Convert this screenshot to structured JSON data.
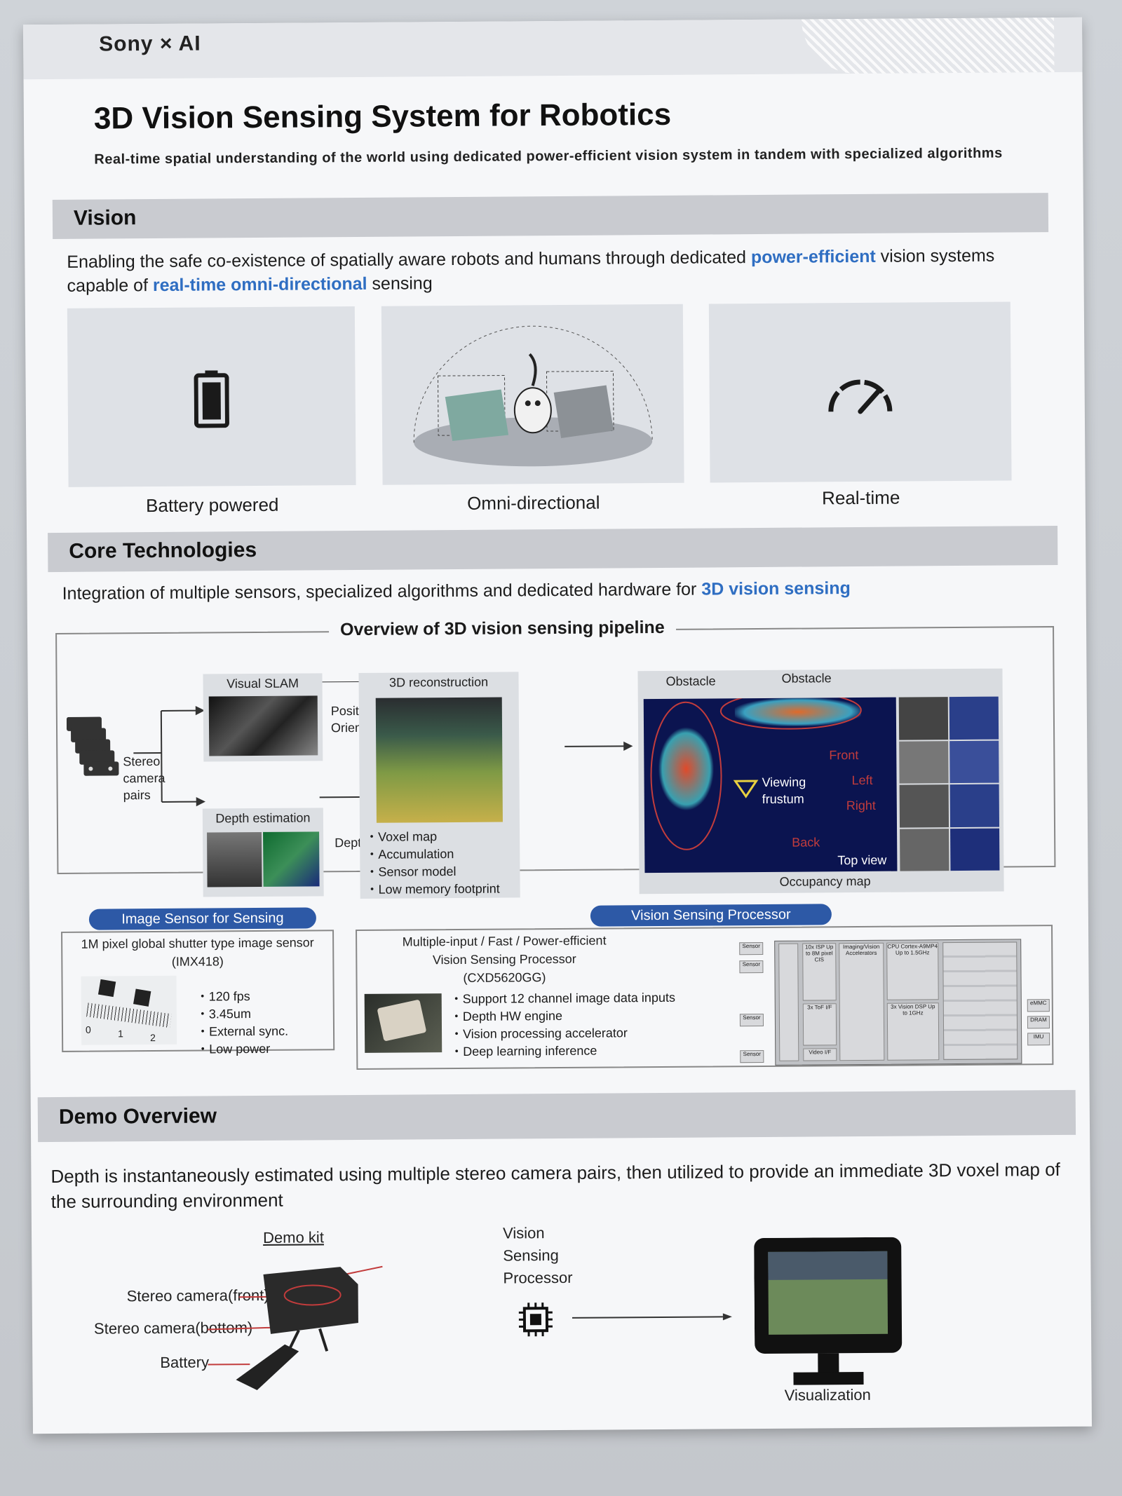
{
  "brand": "Sony × AI",
  "title": "3D Vision Sensing System for Robotics",
  "subtitle": "Real-time spatial understanding of the world using dedicated power-efficient vision system in tandem with specialized algorithms",
  "vision": {
    "heading": "Vision",
    "lead_a": "Enabling the safe co-existence of spatially aware robots and humans through dedicated ",
    "lead_hl1": "power-efficient",
    "lead_b": " vision systems capable of ",
    "lead_hl2": "real-time omni-directional",
    "lead_c": " sensing",
    "cards": [
      "Battery powered",
      "Omni-directional",
      "Real-time"
    ]
  },
  "core": {
    "heading": "Core Technologies",
    "lead_a": "Integration of multiple sensors, specialized algorithms and dedicated hardware for ",
    "lead_hl": "3D vision sensing",
    "pipeline_title": "Overview of 3D vision sensing pipeline",
    "stereo": "Stereo camera pairs",
    "visual_slam": "Visual SLAM",
    "position": "Position",
    "orientation": "Orientation",
    "depth_estimation": "Depth estimation",
    "depth": "Depth",
    "recon": "3D reconstruction",
    "recon_bullets": [
      "Voxel map",
      "Accumulation",
      "Sensor model",
      "Low memory footprint"
    ],
    "obstacle1": "Obstacle",
    "obstacle2": "Obstacle",
    "viewing": "Viewing",
    "frustum": "frustum",
    "front": "Front",
    "left": "Left",
    "right": "Right",
    "back": "Back",
    "top_view": "Top view",
    "occupancy": "Occupancy map"
  },
  "sensor": {
    "pill": "Image Sensor for Sensing",
    "desc1": "1M pixel global shutter type image sensor",
    "desc2": "(IMX418)",
    "bullets": [
      "120 fps",
      "3.45um",
      "External sync.",
      "Low power"
    ],
    "ruler": [
      "0",
      "1",
      "2"
    ]
  },
  "processor": {
    "pill": "Vision Sensing Processor",
    "desc1": "Multiple-input / Fast / Power-efficient",
    "desc2": "Vision Sensing Processor",
    "desc3": "(CXD5620GG)",
    "bullets": [
      "Support 12 channel image data inputs",
      "Depth HW engine",
      "Vision processing accelerator",
      "Deep learning inference"
    ],
    "blocks": {
      "sensor": "Sensor",
      "isp": "10x ISP Up to 8M pixel CIS",
      "tof": "3x ToF I/F",
      "imaging": "Imaging/Vision Accelerators",
      "cpu": "CPU Cortex-A9MP4 Up to 1.5GHz",
      "dsp": "3x Vision DSP Up to 1GHz",
      "video": "Video I/F",
      "emmc": "eMMC",
      "dram": "DRAM",
      "imu": "IMU"
    }
  },
  "demo": {
    "heading": "Demo Overview",
    "lead": "Depth is instantaneously estimated using multiple stereo camera pairs, then utilized to provide an immediate 3D voxel map of the surrounding environment",
    "kit": "Demo kit",
    "front": "Stereo camera(front)",
    "bottom": "Stereo camera(bottom)",
    "battery": "Battery",
    "vsp1": "Vision",
    "vsp2": "Sensing",
    "vsp3": "Processor",
    "visualization": "Visualization"
  },
  "colors": {
    "accent": "#2f6ec2",
    "pill": "#2d59a6",
    "section": "#c9cbd0",
    "highlight_red": "#c23c3c"
  }
}
